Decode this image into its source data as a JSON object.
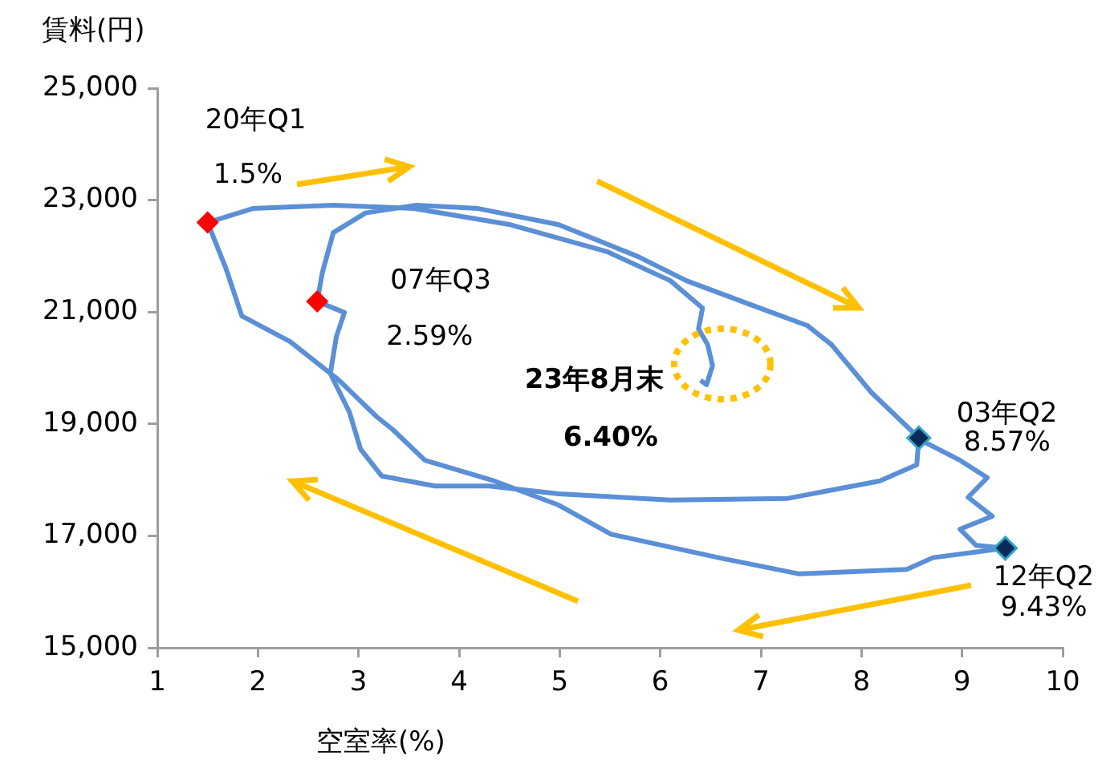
{
  "chart_data": {
    "type": "line",
    "xlabel": "空室率(%)",
    "ylabel": "賃料(円)",
    "xlim": [
      1,
      10
    ],
    "xticks": [
      1,
      2,
      3,
      4,
      5,
      6,
      7,
      8,
      9,
      10
    ],
    "ylim": [
      15000,
      25000
    ],
    "yticks": [
      {
        "value": 15000,
        "label": "15,000"
      },
      {
        "value": 17000,
        "label": "17,000"
      },
      {
        "value": 19000,
        "label": "19,000"
      },
      {
        "value": 21000,
        "label": "21,000"
      },
      {
        "value": 23000,
        "label": "23,000"
      },
      {
        "value": 25000,
        "label": "25,000"
      }
    ],
    "grid": false,
    "legend": false,
    "series": [
      {
        "color": "#5b8fd6",
        "marker": "none",
        "x": [
          8.57,
          8.55,
          8.18,
          7.27,
          6.1,
          4.99,
          4.3,
          3.76,
          3.23,
          3.02,
          2.91,
          2.72,
          2.78,
          2.86,
          2.59,
          2.64,
          2.75,
          3.07,
          3.58,
          4.19,
          4.99,
          5.78,
          6.26,
          6.9,
          7.46,
          7.7,
          8.1,
          8.6,
          8.98,
          9.25,
          9.06,
          9.3,
          8.98,
          9.14,
          9.43,
          8.71,
          8.45,
          7.38,
          6.58,
          5.51,
          4.99,
          4.35,
          3.66,
          3.34,
          3.18,
          2.8,
          2.32,
          1.84,
          1.68,
          1.5,
          1.95,
          2.75,
          3.55,
          4.51,
          5.47,
          6.1,
          6.42,
          6.38,
          6.47,
          6.52,
          6.46,
          6.4
        ],
        "values": [
          18750,
          18270,
          17980,
          17670,
          17640,
          17750,
          17890,
          17890,
          18070,
          18550,
          19210,
          19900,
          20560,
          20990,
          21190,
          21700,
          22420,
          22770,
          22910,
          22850,
          22560,
          21990,
          21560,
          21130,
          20760,
          20420,
          19560,
          18700,
          18350,
          18040,
          17690,
          17350,
          17120,
          16830,
          16780,
          16610,
          16400,
          16320,
          16610,
          17030,
          17550,
          17980,
          18350,
          18900,
          19130,
          19790,
          20470,
          20930,
          21790,
          22600,
          22850,
          22910,
          22850,
          22560,
          22080,
          21560,
          21070,
          20700,
          20420,
          20040,
          19700,
          19780
        ]
      },
      {
        "type": "scatter",
        "marker": "diamond",
        "x": [
          1.5,
          2.59,
          8.57,
          9.43
        ],
        "values": [
          22600,
          21190,
          18750,
          16780
        ],
        "colors": [
          "#ff0000",
          "#ff0000",
          "#0b2a5c",
          "#0b2a5c"
        ]
      }
    ],
    "annotations": [
      {
        "text": "20年Q1\n1.5%",
        "x": 1.5,
        "y": 22600
      },
      {
        "text": "07年Q3\n2.59%",
        "x": 2.59,
        "y": 21190
      },
      {
        "text": "23年8月末\n6.40%",
        "x": 6.4,
        "y": 19780
      },
      {
        "text": "03年Q2\n8.57%",
        "x": 8.57,
        "y": 18750
      },
      {
        "text": "12年Q2\n9.43%",
        "x": 9.43,
        "y": 16780
      }
    ]
  }
}
